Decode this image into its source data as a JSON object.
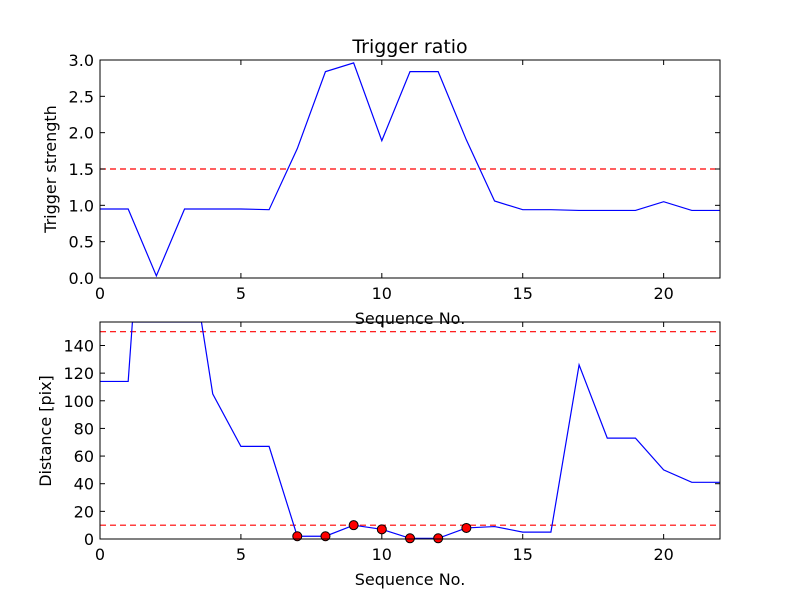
{
  "chart_data": [
    {
      "type": "line",
      "title": "Trigger ratio",
      "xlabel": "Sequence No.",
      "ylabel": "Trigger strength",
      "xlim": [
        0,
        22
      ],
      "ylim": [
        0,
        3.0
      ],
      "xticks": [
        0,
        5,
        10,
        15,
        20
      ],
      "xtick_labels": [
        "0",
        "5",
        "10",
        "15",
        "20"
      ],
      "yticks": [
        0,
        0.5,
        1.0,
        1.5,
        2.0,
        2.5,
        3.0
      ],
      "ytick_labels": [
        "0.0",
        "0.5",
        "1.0",
        "1.5",
        "2.0",
        "2.5",
        "3.0"
      ],
      "grid": false,
      "series": [
        {
          "color": "#0000ff",
          "x": [
            0,
            1,
            2,
            3,
            4,
            5,
            6,
            7,
            8,
            9,
            10,
            11,
            12,
            13,
            14,
            15,
            16,
            17,
            18,
            19,
            20,
            21,
            22
          ],
          "y": [
            0.95,
            0.95,
            0.03,
            0.95,
            0.95,
            0.95,
            0.94,
            1.78,
            2.84,
            2.96,
            1.89,
            2.84,
            2.84,
            1.9,
            1.06,
            0.94,
            0.94,
            0.93,
            0.93,
            0.93,
            1.05,
            0.93,
            0.93
          ]
        }
      ],
      "threshold_lines": [
        {
          "y": 1.5,
          "color": "#ff0000",
          "style": "dashed"
        }
      ]
    },
    {
      "type": "line",
      "title": "",
      "xlabel": "Sequence No.",
      "ylabel": "Distance [pix]",
      "xlim": [
        0,
        22
      ],
      "ylim": [
        0,
        157
      ],
      "xticks": [
        0,
        5,
        10,
        15,
        20
      ],
      "xtick_labels": [
        "0",
        "5",
        "10",
        "15",
        "20"
      ],
      "yticks": [
        0,
        20,
        40,
        60,
        80,
        100,
        120,
        140
      ],
      "ytick_labels": [
        "0",
        "20",
        "40",
        "60",
        "80",
        "100",
        "120",
        "140"
      ],
      "grid": false,
      "series": [
        {
          "color": "#0000ff",
          "x": [
            0,
            1,
            1.15,
            3.6,
            4,
            5,
            6,
            7,
            8,
            9,
            10,
            11,
            12,
            13,
            14,
            15,
            16,
            17,
            18,
            19,
            20,
            21,
            22
          ],
          "y": [
            114,
            114,
            157,
            157,
            105,
            67,
            67,
            2,
            2,
            10,
            7,
            0.5,
            0.5,
            8,
            9,
            5,
            5,
            126,
            73,
            73,
            50,
            41,
            41
          ]
        }
      ],
      "markers": {
        "color": "#ff0000",
        "x": [
          7,
          8,
          9,
          10,
          11,
          12,
          13
        ],
        "y": [
          2,
          2,
          10,
          7,
          0.5,
          0.5,
          8
        ]
      },
      "threshold_lines": [
        {
          "y": 150,
          "color": "#ff0000",
          "style": "dashed"
        },
        {
          "y": 10,
          "color": "#ff0000",
          "style": "dashed"
        }
      ]
    }
  ]
}
